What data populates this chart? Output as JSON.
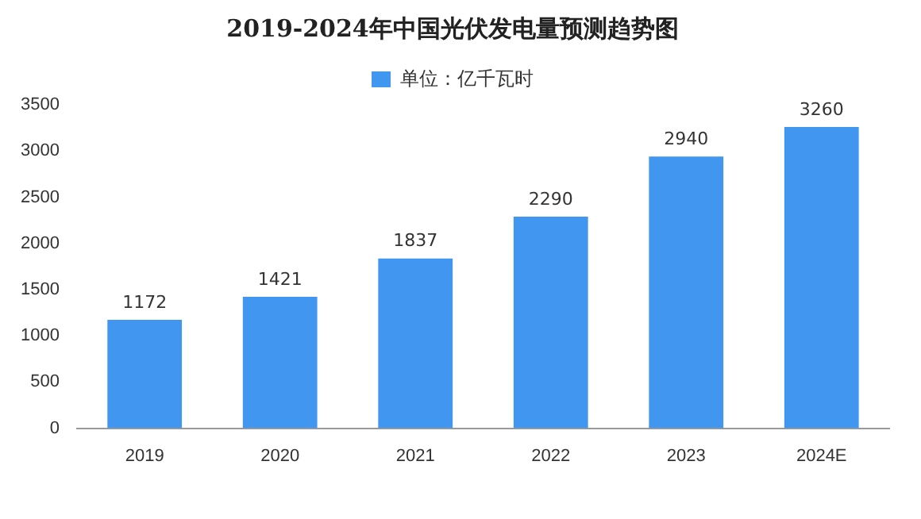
{
  "chart_data": {
    "type": "bar",
    "title": "2019-2024年中国光伏发电量预测趋势图",
    "categories": [
      "2019",
      "2020",
      "2021",
      "2022",
      "2023",
      "2024E"
    ],
    "series": [
      {
        "name": "单位：亿千瓦时",
        "color": "#4196f0",
        "values": [
          1172,
          1421,
          1837,
          2290,
          2940,
          3260
        ]
      }
    ],
    "ylim": [
      0,
      3500
    ],
    "yticks": [
      0,
      500,
      1000,
      1500,
      2000,
      2500,
      3000,
      3500
    ],
    "grid": false,
    "legend": "top",
    "data_labels": true
  }
}
